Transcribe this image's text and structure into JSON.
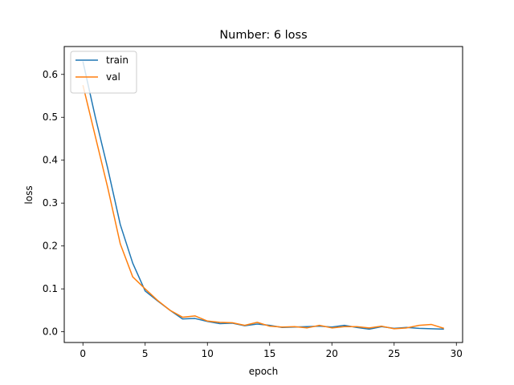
{
  "chart_data": {
    "type": "line",
    "title": "Number: 6 loss",
    "xlabel": "epoch",
    "ylabel": "loss",
    "xlim": [
      -1.5,
      30.5
    ],
    "ylim": [
      -0.025,
      0.665
    ],
    "xticks": [
      0,
      5,
      10,
      15,
      20,
      25,
      30
    ],
    "yticks": [
      0.0,
      0.1,
      0.2,
      0.3,
      0.4,
      0.5,
      0.6
    ],
    "grid": false,
    "legend_position": "top-left",
    "x": [
      0,
      1,
      2,
      3,
      4,
      5,
      6,
      7,
      8,
      9,
      10,
      11,
      12,
      13,
      14,
      15,
      16,
      17,
      18,
      19,
      20,
      21,
      22,
      23,
      24,
      25,
      26,
      27,
      28,
      29
    ],
    "series": [
      {
        "name": "train",
        "color": "#1f77b4",
        "values": [
          0.63,
          0.5,
          0.38,
          0.25,
          0.16,
          0.095,
          0.072,
          0.05,
          0.03,
          0.031,
          0.024,
          0.019,
          0.02,
          0.014,
          0.018,
          0.015,
          0.01,
          0.011,
          0.012,
          0.013,
          0.011,
          0.015,
          0.01,
          0.006,
          0.012,
          0.008,
          0.01,
          0.008,
          0.007,
          0.006
        ]
      },
      {
        "name": "val",
        "color": "#ff7f0e",
        "values": [
          0.575,
          0.455,
          0.335,
          0.205,
          0.128,
          0.1,
          0.073,
          0.05,
          0.034,
          0.037,
          0.025,
          0.022,
          0.021,
          0.015,
          0.022,
          0.013,
          0.011,
          0.012,
          0.009,
          0.015,
          0.009,
          0.012,
          0.012,
          0.009,
          0.013,
          0.007,
          0.009,
          0.015,
          0.017,
          0.008
        ]
      }
    ]
  }
}
